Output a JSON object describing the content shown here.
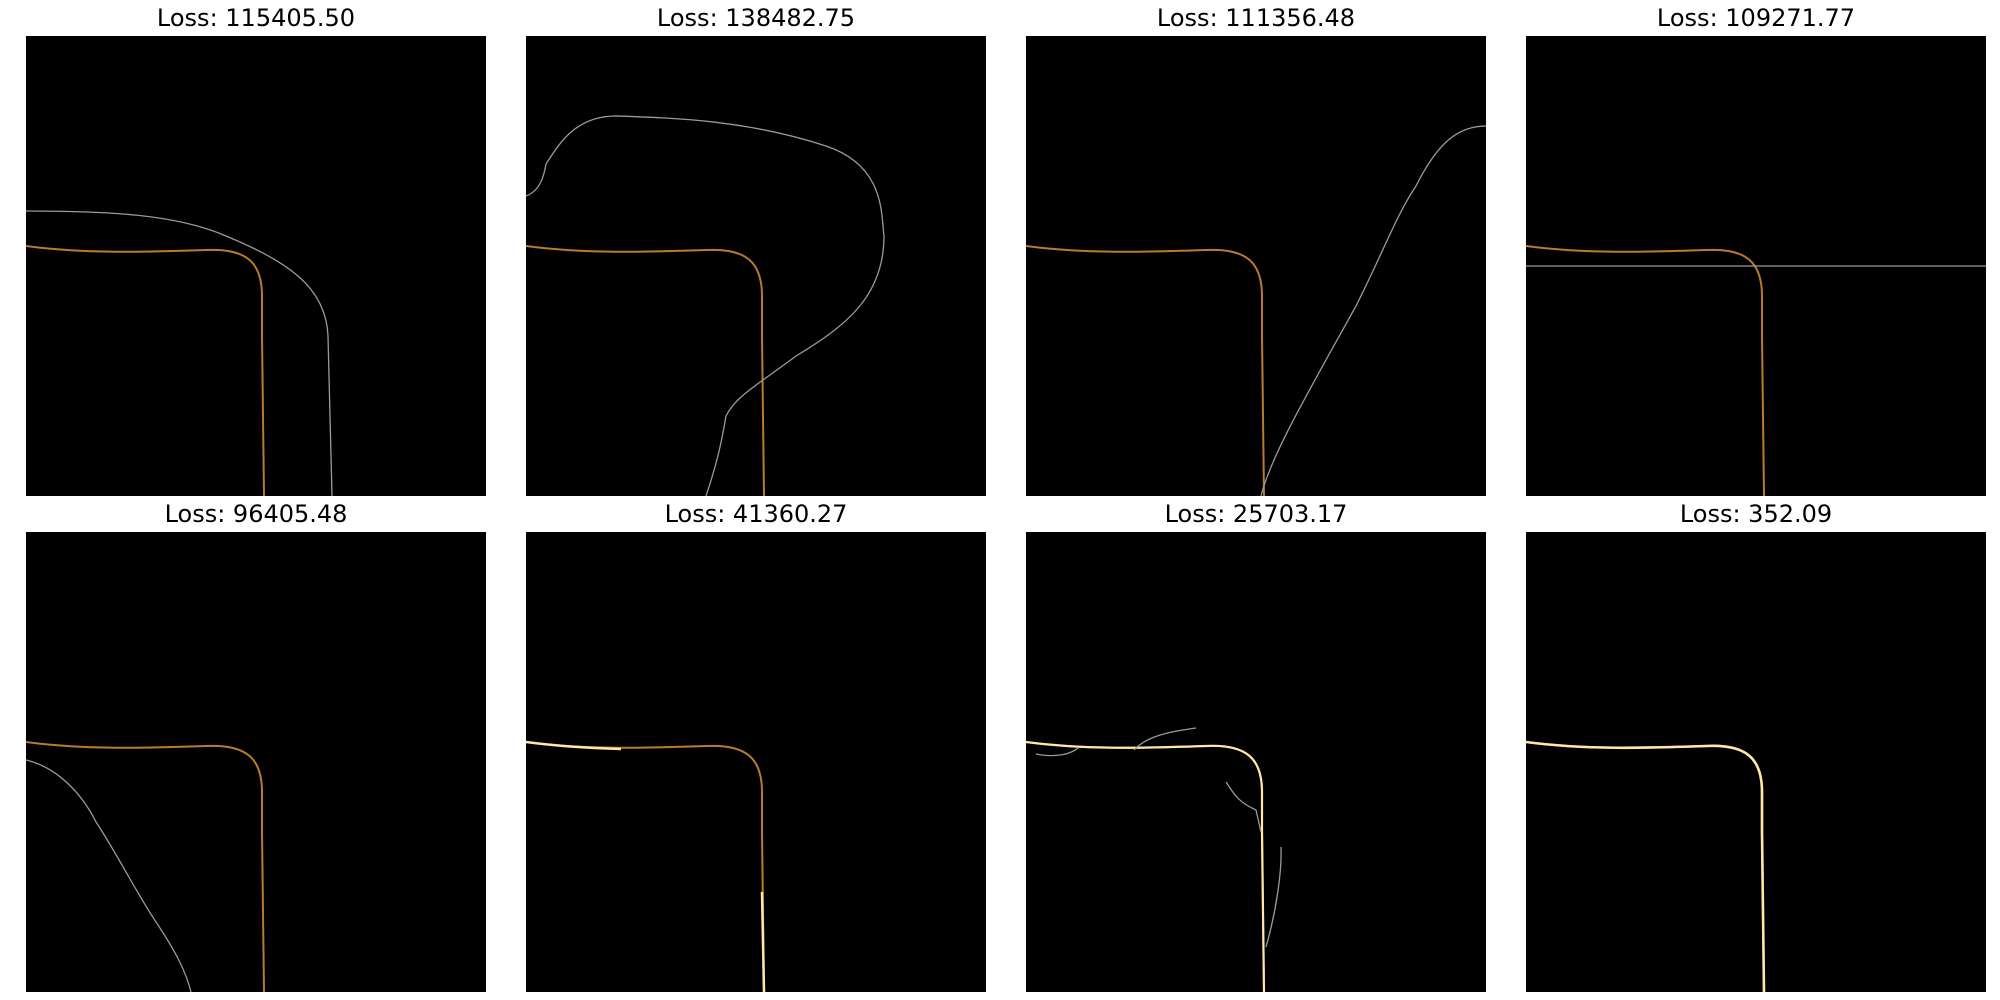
{
  "colors": {
    "background": "#000000",
    "target_curve": "#b87b30",
    "overlap_highlight": "#ffe7a8",
    "predicted_curve": "#9a9a9a"
  },
  "panels": [
    {
      "title": "Loss: 115405.50"
    },
    {
      "title": "Loss: 138482.75"
    },
    {
      "title": "Loss: 111356.48"
    },
    {
      "title": "Loss: 109271.77"
    },
    {
      "title": "Loss: 96405.48"
    },
    {
      "title": "Loss: 41360.27"
    },
    {
      "title": "Loss: 25703.17"
    },
    {
      "title": "Loss: 352.09"
    }
  ]
}
